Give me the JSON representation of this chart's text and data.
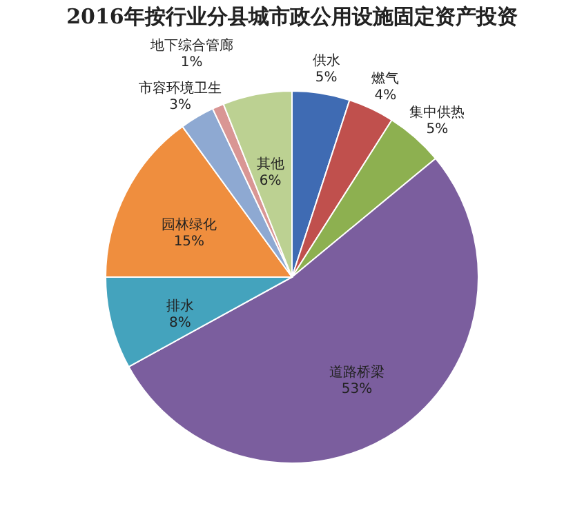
{
  "chart_data": {
    "type": "pie",
    "title": "2016年按行业分县城市政公用设施固定资产投资",
    "categories": [
      "供水",
      "燃气",
      "集中供热",
      "道路桥梁",
      "排水",
      "园林绿化",
      "市容环境卫生",
      "地下综合管廊",
      "其他"
    ],
    "values": [
      5,
      4,
      5,
      53,
      8,
      15,
      3,
      1,
      6
    ],
    "value_labels": [
      "5%",
      "4%",
      "5%",
      "53%",
      "8%",
      "15%",
      "3%",
      "1%",
      "6%"
    ],
    "colors": [
      "#3f6bb3",
      "#c0504d",
      "#8db050",
      "#7b5e9e",
      "#44a3bd",
      "#ef8e3e",
      "#8ea9d2",
      "#d99694",
      "#bcd192"
    ],
    "legend": false
  }
}
